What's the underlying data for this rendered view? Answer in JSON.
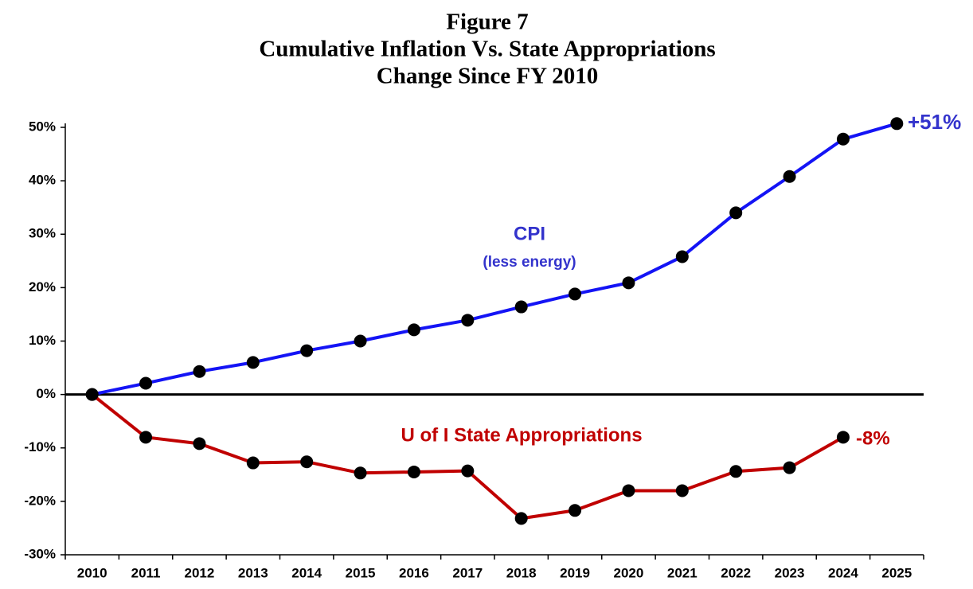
{
  "chart_data": {
    "type": "line",
    "title": [
      "Figure 7",
      "Cumulative Inflation Vs. State Appropriations",
      "Change Since FY 2010"
    ],
    "categories": [
      "2010",
      "2011",
      "2012",
      "2013",
      "2014",
      "2015",
      "2016",
      "2017",
      "2018",
      "2019",
      "2020",
      "2021",
      "2022",
      "2023",
      "2024",
      "2025"
    ],
    "series": [
      {
        "name": "CPI (less energy)",
        "color": "#1414f5",
        "values": [
          0,
          2.1,
          4.3,
          6,
          8.2,
          10,
          12.1,
          13.9,
          16.4,
          18.8,
          20.9,
          25.8,
          34,
          40.8,
          47.8,
          50.7
        ]
      },
      {
        "name": "U of I State Appropriations",
        "color": "#c00000",
        "values": [
          0,
          -8,
          -9.2,
          -12.8,
          -12.6,
          -14.7,
          -14.5,
          -14.3,
          -23.2,
          -21.7,
          -18,
          -18,
          -14.4,
          -13.7,
          -8,
          null
        ]
      }
    ],
    "annotations": [
      {
        "text": "CPI",
        "color": "#3333cc"
      },
      {
        "text": "(less energy)",
        "color": "#3333cc"
      },
      {
        "text": "U of I State Appropriations",
        "color": "#c00000"
      },
      {
        "text": "+51%",
        "color": "#3333cc"
      },
      {
        "text": "-8%",
        "color": "#c00000"
      }
    ],
    "ylim": [
      -30,
      50
    ],
    "yticks": [
      {
        "value": -30,
        "label": "-30%"
      },
      {
        "value": -20,
        "label": "-20%"
      },
      {
        "value": -10,
        "label": "-10%"
      },
      {
        "value": 0,
        "label": "0%"
      },
      {
        "value": 10,
        "label": "10%"
      },
      {
        "value": 20,
        "label": "20%"
      },
      {
        "value": 30,
        "label": "30%"
      },
      {
        "value": 40,
        "label": "40%"
      },
      {
        "value": 50,
        "label": "50%"
      }
    ],
    "reference_line": 0,
    "grid": false
  }
}
